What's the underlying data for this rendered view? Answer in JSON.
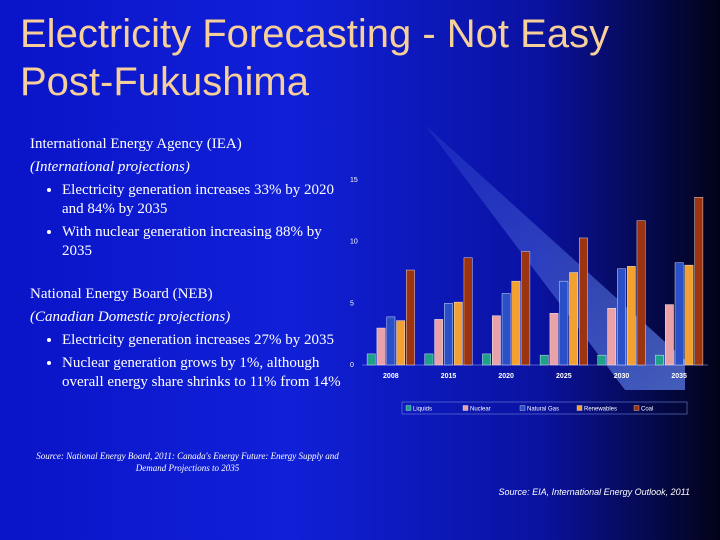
{
  "title": "Electricity Forecasting - Not Easy Post-Fukushima",
  "section_iea": {
    "heading": "International Energy Agency (IEA)",
    "subheading": "(International projections)",
    "bullets": [
      "Electricity generation increases 33% by 2020 and 84% by 2035",
      "With nuclear generation increasing 88% by 2035"
    ]
  },
  "section_neb": {
    "heading": "National Energy Board (NEB)",
    "subheading": "(Canadian Domestic projections)",
    "bullets": [
      "Electricity generation increases 27% by 2035",
      "Nuclear generation grows by 1%, although overall energy share shrinks to 11% from 14%"
    ]
  },
  "source_neb": "Source: National Energy Board, 2011: Canada's Energy Future: Energy Supply and Demand Projections to 2035",
  "source_eia": "Source: EIA, International Energy Outlook, 2011",
  "colors": {
    "title": "#f7cf9a",
    "Liquids": "#1fa08a",
    "Nuclear": "#e8a2a8",
    "Natural Gas": "#2a50c8",
    "Renewables": "#f2a030",
    "Coal": "#9c3410"
  },
  "chart_data": {
    "type": "bar",
    "categories": [
      "2008",
      "2015",
      "2020",
      "2025",
      "2030",
      "2035"
    ],
    "y_ticks": [
      "0",
      "5",
      "10",
      "15"
    ],
    "ylim": [
      0,
      15
    ],
    "legend_position": "bottom",
    "series": [
      {
        "name": "Liquids",
        "values": [
          0.9,
          0.9,
          0.9,
          0.8,
          0.8,
          0.8
        ]
      },
      {
        "name": "Nuclear",
        "values": [
          3.0,
          3.7,
          4.0,
          4.2,
          4.6,
          4.9
        ]
      },
      {
        "name": "Natural Gas",
        "values": [
          3.9,
          5.0,
          5.8,
          6.8,
          7.8,
          8.3
        ]
      },
      {
        "name": "Renewables",
        "values": [
          3.6,
          5.1,
          6.8,
          7.5,
          8.0,
          8.1
        ]
      },
      {
        "name": "Coal",
        "values": [
          7.7,
          8.7,
          9.2,
          10.3,
          11.7,
          13.6
        ]
      }
    ]
  }
}
